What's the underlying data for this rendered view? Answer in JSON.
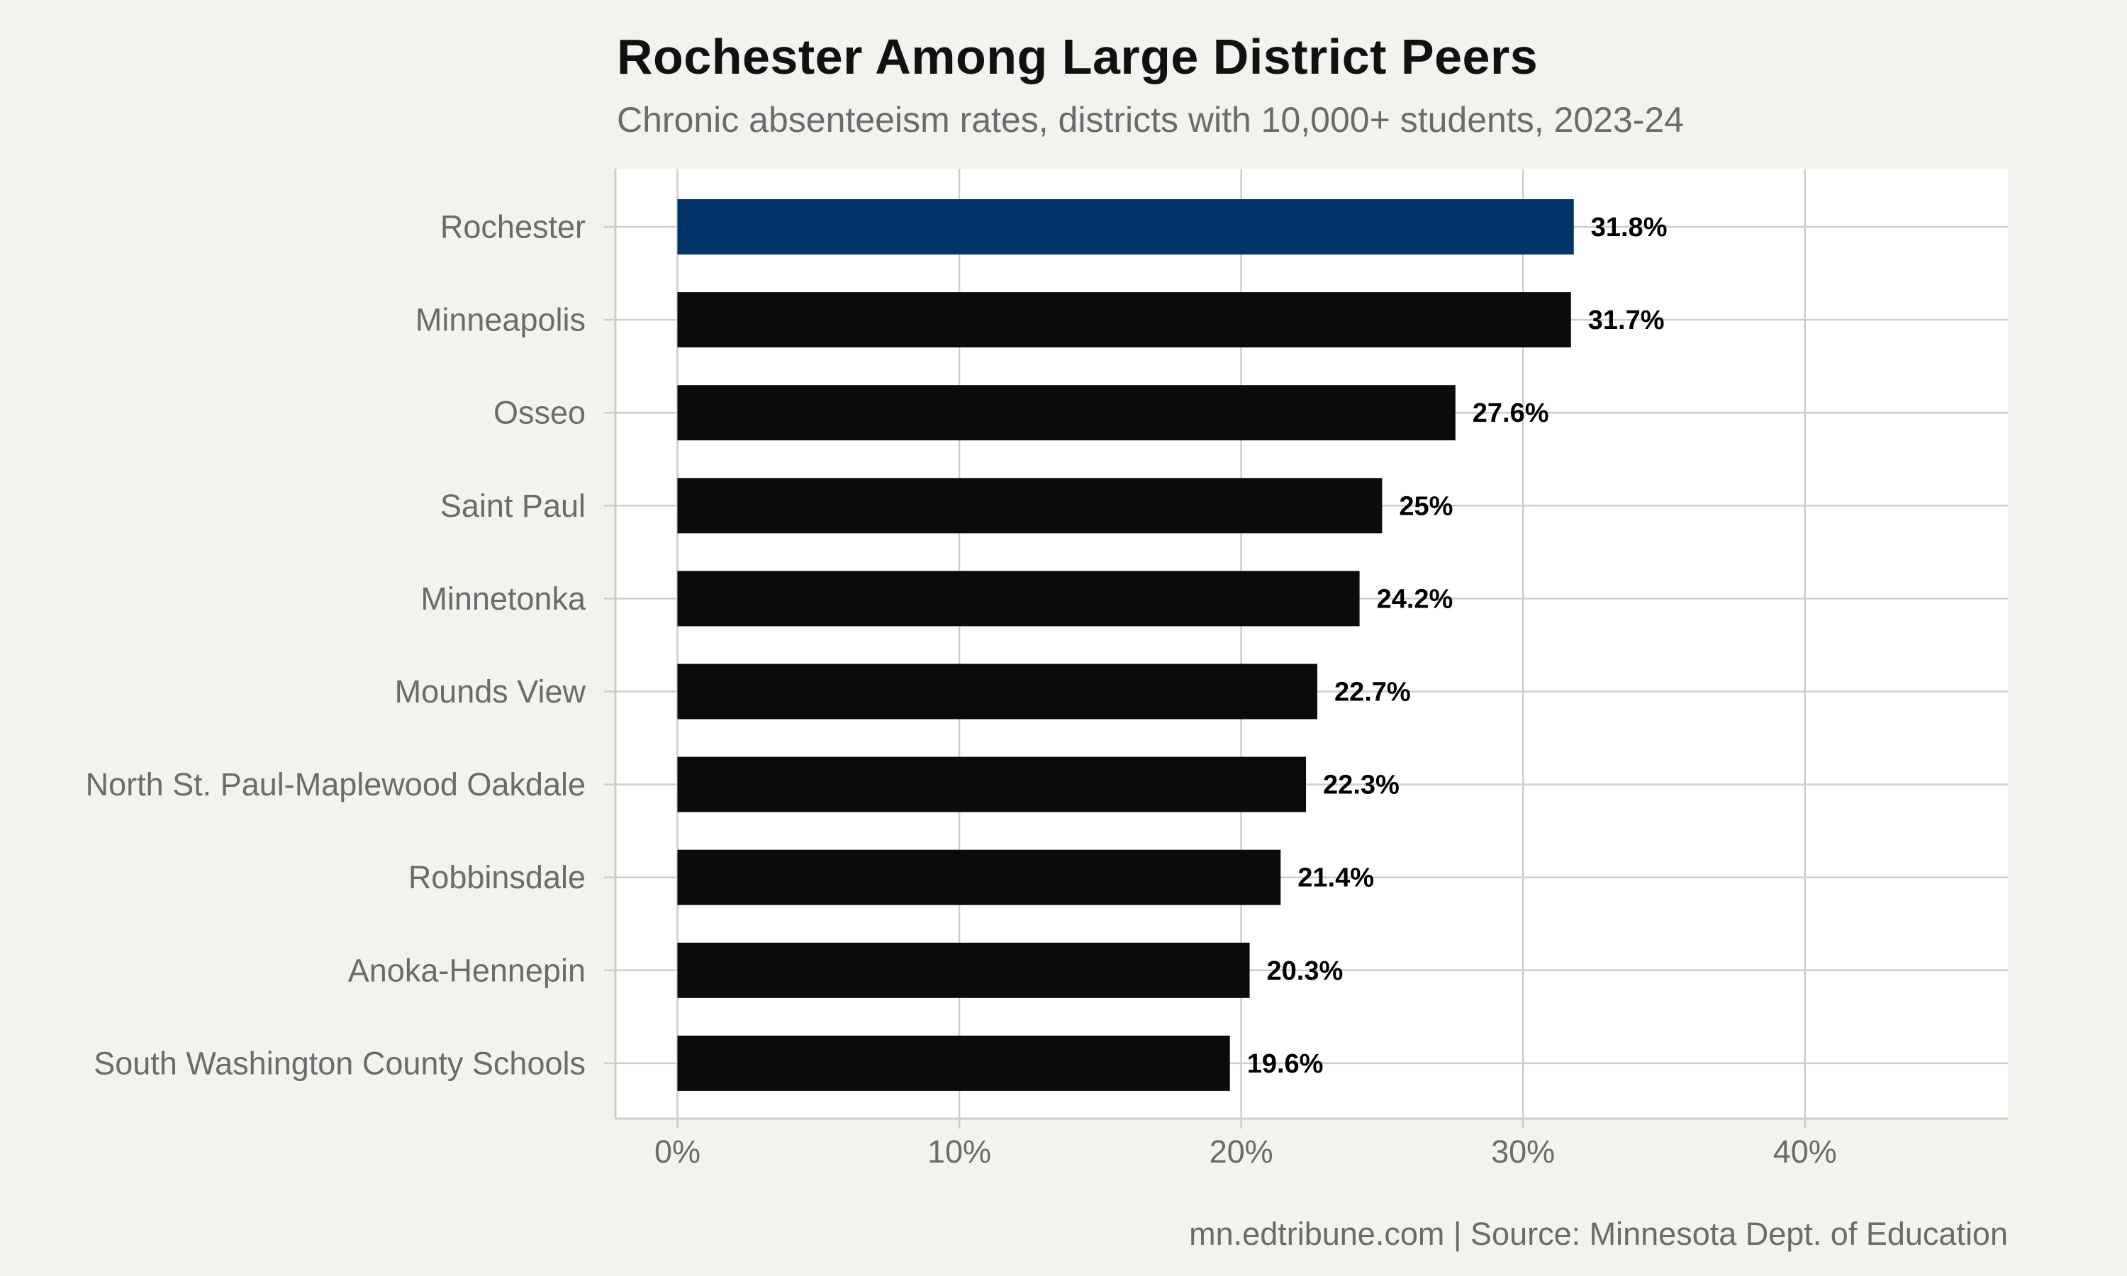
{
  "header": {
    "title": "Rochester Among Large District Peers",
    "subtitle": "Chronic absenteeism rates, districts with 10,000+ students, 2023-24"
  },
  "footer": {
    "caption": "mn.edtribune.com | Source: Minnesota Dept. of Education"
  },
  "colors": {
    "highlight": "#003366",
    "bar": "#0b0b0b",
    "panel": "#ffffff",
    "page": "#f4f2ee",
    "grid": "#cfcdc6"
  },
  "chart_data": {
    "type": "bar",
    "orientation": "horizontal",
    "title": "Rochester Among Large District Peers",
    "subtitle": "Chronic absenteeism rates, districts with 10,000+ students, 2023-24",
    "categories": [
      "Rochester",
      "Minneapolis",
      "Osseo",
      "Saint Paul",
      "Minnetonka",
      "Mounds View",
      "North St. Paul-Maplewood Oakdale",
      "Robbinsdale",
      "Anoka-Hennepin",
      "South Washington County Schools"
    ],
    "values": [
      31.8,
      31.7,
      27.6,
      25.0,
      24.2,
      22.7,
      22.3,
      21.4,
      20.3,
      19.6
    ],
    "data_labels": [
      "31.8%",
      "31.7%",
      "27.6%",
      "25%",
      "24.2%",
      "22.7%",
      "22.3%",
      "21.4%",
      "20.3%",
      "19.6%"
    ],
    "highlight_category": "Rochester",
    "xlim": [
      -2.2,
      47.2
    ],
    "x_ticks": [
      0,
      10,
      20,
      30,
      40
    ],
    "x_tick_labels": [
      "0%",
      "10%",
      "20%",
      "30%",
      "40%"
    ],
    "xlabel": "",
    "ylabel": "",
    "grid": true,
    "legend": "none"
  }
}
